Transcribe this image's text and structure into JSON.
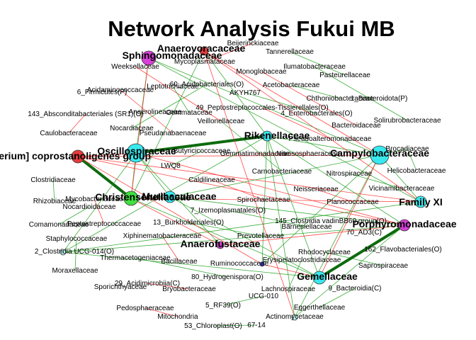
{
  "title": "Network Analysis Fukui MB",
  "colors": {
    "negative_edge": "#ff2a2a",
    "positive_edge": "#1a9e1a",
    "strong_edge": "#0e6b0e",
    "cyan": "#39e8ee",
    "magenta": "#d640d6",
    "green": "#3fe03f",
    "red": "#e43c3c",
    "blue": "#4040e8",
    "light_cyan": "#bff7f7"
  },
  "nodes": [
    {
      "id": "title_sph",
      "label": "Sphingomonadaceae",
      "color": "magenta",
      "size": 10,
      "big": true
    },
    {
      "id": "anaerovoracaceae",
      "label": "Anaerovoracaceae",
      "color": "red",
      "size": 6,
      "big": true
    },
    {
      "id": "beijerinckiaceae",
      "label": "Beijerinckiaceae"
    },
    {
      "id": "tannerellaceae",
      "label": "Tannerellaceae"
    },
    {
      "id": "weeksellaceae",
      "label": "Weeksellaceae"
    },
    {
      "id": "mycoplasmataceae",
      "label": "Mycoplasmataceae"
    },
    {
      "id": "monoglobaceae",
      "label": "Monoglobaceae"
    },
    {
      "id": "ilumatobacteraceae",
      "label": "Ilumatobacteraceae"
    },
    {
      "id": "pasteurellaceae",
      "label": "Pasteurellaceae"
    },
    {
      "id": "acidaminococcaceae",
      "label": "Acidaminococcaceae"
    },
    {
      "id": "leptotrichiaceae",
      "label": "Leptotrichiaceae"
    },
    {
      "id": "acidobacteriales",
      "label": "60_Acidobacteriales(O)"
    },
    {
      "id": "acetobacteraceae",
      "label": "Acetobacteraceae"
    },
    {
      "id": "firmicutes",
      "label": "6_Firmicutes(P)"
    },
    {
      "id": "akyh767",
      "label": "AKYH767"
    },
    {
      "id": "chthoniobacteraceae",
      "label": "Chthoniobacteraceae"
    },
    {
      "id": "bacteroidota",
      "label": "1_Bacteroidota(P)"
    },
    {
      "id": "absconditabacteriales",
      "label": "143_Absconditabacteriales (SR1)(O)"
    },
    {
      "id": "anaerolineaceae",
      "label": "Anaerolineaceae"
    },
    {
      "id": "gemmataceae",
      "label": "Gemmataceae"
    },
    {
      "id": "peptostreptococcales",
      "label": "49_Peptostreptococcales-Tissierellales(O)"
    },
    {
      "id": "enterobacterales",
      "label": "4_Enterobacterales(O)"
    },
    {
      "id": "nocardiaceae",
      "label": "Nocardiaceae"
    },
    {
      "id": "veillonellaceae",
      "label": "Veillonellaceae"
    },
    {
      "id": "bacteroidaceae",
      "label": "Bacteroidaceae"
    },
    {
      "id": "caulobacteraceae",
      "label": "Caulobacteraceae"
    },
    {
      "id": "pseudanabaenaceae",
      "label": "Pseudanabaenaceae"
    },
    {
      "id": "rikenellaceae",
      "label": "Rikenellaceae",
      "color": "cyan",
      "size": 7,
      "big": true
    },
    {
      "id": "solirubrobacteraceae",
      "label": "Solirubrobacteraceae"
    },
    {
      "id": "pseudoalteromonadaceae",
      "label": "Pseudoalteromonadaceae"
    },
    {
      "id": "coprostanoligenes",
      "label": "[Eubacterium] coprostanoligenes group",
      "color": "red",
      "size": 9,
      "big": true
    },
    {
      "id": "oscillospiraceae",
      "label": "Oscillospiraceae",
      "color": "cyan",
      "size": 13,
      "big": true
    },
    {
      "id": "butyricicoccaceae",
      "label": "Butyricicoccaceae"
    },
    {
      "id": "gemmatimonadaceae",
      "label": "Gemmatimonadaceae"
    },
    {
      "id": "nitrososphaeraceae",
      "label": "Nitrososphaeraceae"
    },
    {
      "id": "campylobacteraceae",
      "label": "Campylobacteraceae",
      "color": "cyan",
      "size": 13,
      "big": true
    },
    {
      "id": "brocadiaceae",
      "label": "Brocadiaceae"
    },
    {
      "id": "lwq8",
      "label": "LWQ8"
    },
    {
      "id": "helicobacteraceae",
      "label": "Helicobacteraceae"
    },
    {
      "id": "carnobacteriaceae",
      "label": "Carnobacteriaceae"
    },
    {
      "id": "nitrospiraceae",
      "label": "Nitrospiraceae"
    },
    {
      "id": "clostridiaceae",
      "label": "Clostridiaceae"
    },
    {
      "id": "caldilineaceae",
      "label": "Caldilineaceae"
    },
    {
      "id": "neisseriaceae",
      "label": "Neisseriaceae"
    },
    {
      "id": "vicinamibacteraceae",
      "label": "Vicinamibacteraceae"
    },
    {
      "id": "christensenellaceae",
      "label": "Christensenellaceae",
      "color": "green",
      "size": 10,
      "big": true
    },
    {
      "id": "muribaculaceae",
      "label": "Muribaculaceae",
      "color": "cyan",
      "size": 8,
      "big": true
    },
    {
      "id": "rhizobiaceae",
      "label": "Rhizobiaceae"
    },
    {
      "id": "mycobacteriaceae",
      "label": "Mycobacteriaceae"
    },
    {
      "id": "spirochaetaceae",
      "label": "Spirochaetaceae"
    },
    {
      "id": "planococcaceae",
      "label": "Planococcaceae"
    },
    {
      "id": "family_xi",
      "label": "Family XI",
      "color": "cyan",
      "size": 8,
      "big": true
    },
    {
      "id": "nocardioidaceae",
      "label": "Nocardioidaceae"
    },
    {
      "id": "izemoplasmatales",
      "label": "7_Izemoplasmatales(O)"
    },
    {
      "id": "porphyromonadaceae",
      "label": "Porphyromonadaceae",
      "color": "magenta",
      "size": 8,
      "big": true
    },
    {
      "id": "comamonadaceae",
      "label": "Comamonadaceae"
    },
    {
      "id": "peptostreptococcaceae",
      "label": "Peptostreptococcaceae"
    },
    {
      "id": "burkholderiales",
      "label": "13_Burkholderiales(O)"
    },
    {
      "id": "clostridia_vadin",
      "label": "145_Clostridia vadinBB60 group(O)"
    },
    {
      "id": "barnesiellaceae",
      "label": "Barnesiellaceae"
    },
    {
      "id": "ad3",
      "label": "70_AD3(C)"
    },
    {
      "id": "staphylococcaceae",
      "label": "Staphylococcaceae"
    },
    {
      "id": "xiphinematobacteraceae",
      "label": "Xiphinematobacteraceae"
    },
    {
      "id": "prevotellaceae",
      "label": "Prevotellaceae"
    },
    {
      "id": "anaerofustaceae",
      "label": "Anaerofustaceae",
      "color": "magenta",
      "size": 5,
      "big": true
    },
    {
      "id": "clostridia_ucg014",
      "label": "2_Clostridia UCG-014(O)",
      "color": "light_cyan",
      "size": 4
    },
    {
      "id": "thermacetogeniaceae",
      "label": "Thermacetogeniaceae"
    },
    {
      "id": "flavobacteriales",
      "label": "162_Flavobacteriales(O)"
    },
    {
      "id": "rhodocyclaceae",
      "label": "Rhodocyclaceae"
    },
    {
      "id": "bacillaceae",
      "label": "Bacillaceae"
    },
    {
      "id": "ruminococcaceae",
      "label": "Ruminococcaceae",
      "color": "blue",
      "size": 3
    },
    {
      "id": "erysipelatoclostridiaceae",
      "label": "Erysipelatoclostridiaceae"
    },
    {
      "id": "saprospiraceae",
      "label": "Saprospiraceae"
    },
    {
      "id": "moraxellaceae",
      "label": "Moraxellaceae"
    },
    {
      "id": "gemellaceae",
      "label": "Gemellaceae",
      "color": "cyan",
      "size": 9,
      "big": true
    },
    {
      "id": "hydrogenispora",
      "label": "80_Hydrogenispora(O)"
    },
    {
      "id": "acidimicrobiia",
      "label": "29_Acidimicrobiia(C)"
    },
    {
      "id": "sporichthyaceae",
      "label": "Sporichthyaceae"
    },
    {
      "id": "bryobacteraceae",
      "label": "Bryobacteraceae"
    },
    {
      "id": "lachnospiraceae",
      "label": "Lachnospiraceae"
    },
    {
      "id": "bacteroidia",
      "label": "9_Bacteroidia(C)"
    },
    {
      "id": "ucg010",
      "label": "UCG-010"
    },
    {
      "id": "rf39",
      "label": "5_RF39(O)"
    },
    {
      "id": "pedosphaeraceae",
      "label": "Pedosphaeraceae"
    },
    {
      "id": "eggerthellaceae",
      "label": "Eggerthellaceae"
    },
    {
      "id": "mitochondria",
      "label": "Mitochondria"
    },
    {
      "id": "actinomycetaceae",
      "label": "Actinomycetaceae",
      "color": "light_cyan",
      "size": 4
    },
    {
      "id": "chloroplast",
      "label": "53_Chloroplast(O)"
    },
    {
      "id": "n6714",
      "label": "67-14"
    }
  ],
  "edges": [
    {
      "from": "oscillospiraceae",
      "to": "rikenellaceae",
      "sign": "strong"
    },
    {
      "from": "coprostanoligenes",
      "to": "christensenellaceae",
      "sign": "strong"
    },
    {
      "from": "gemellaceae",
      "to": "porphyromonadaceae",
      "sign": "strong"
    },
    {
      "from": "rikenellaceae",
      "to": "campylobacteraceae",
      "sign": "positive"
    },
    {
      "from": "oscillospiraceae",
      "to": "christensenellaceae",
      "sign": "positive"
    },
    {
      "from": "oscillospiraceae",
      "to": "muribaculaceae",
      "sign": "positive"
    },
    {
      "from": "christensenellaceae",
      "to": "muribaculaceae",
      "sign": "positive"
    },
    {
      "from": "campylobacteraceae",
      "to": "family_xi",
      "sign": "positive"
    },
    {
      "from": "campylobacteraceae",
      "to": "brocadiaceae",
      "sign": "positive"
    },
    {
      "from": "coprostanoligenes",
      "to": "oscillospiraceae",
      "sign": "negative"
    },
    {
      "from": "anaerovoracaceae",
      "to": "rikenellaceae",
      "sign": "positive"
    },
    {
      "from": "title_sph",
      "to": "oscillospiraceae",
      "sign": "positive"
    },
    {
      "from": "title_sph",
      "to": "campylobacteraceae",
      "sign": "positive"
    },
    {
      "from": "anaerovoracaceae",
      "to": "campylobacteraceae",
      "sign": "negative"
    },
    {
      "from": "coprostanoligenes",
      "to": "campylobacteraceae",
      "sign": "negative"
    },
    {
      "from": "muribaculaceae",
      "to": "porphyromonadaceae",
      "sign": "positive"
    },
    {
      "from": "muribaculaceae",
      "to": "gemellaceae",
      "sign": "positive"
    },
    {
      "from": "christensenellaceae",
      "to": "gemellaceae",
      "sign": "positive"
    },
    {
      "from": "oscillospiraceae",
      "to": "anaerofustaceae",
      "sign": "positive"
    },
    {
      "from": "clostridia_ucg014",
      "to": "porphyromonadaceae",
      "sign": "positive"
    },
    {
      "from": "clostridia_ucg014",
      "to": "oscillospiraceae",
      "sign": "positive"
    },
    {
      "from": "clostridia_ucg014",
      "to": "rikenellaceae",
      "sign": "positive"
    },
    {
      "from": "actinomycetaceae",
      "to": "porphyromonadaceae",
      "sign": "positive"
    },
    {
      "from": "actinomycetaceae",
      "to": "rikenellaceae",
      "sign": "positive"
    },
    {
      "from": "ruminococcaceae",
      "to": "campylobacteraceae",
      "sign": "positive"
    },
    {
      "from": "ruminococcaceae",
      "to": "rikenellaceae",
      "sign": "positive"
    },
    {
      "from": "coprostanoligenes",
      "to": "porphyromonadaceae",
      "sign": "negative"
    },
    {
      "from": "coprostanoligenes",
      "to": "family_xi",
      "sign": "negative"
    },
    {
      "from": "anaerovoracaceae",
      "to": "christensenellaceae",
      "sign": "positive"
    },
    {
      "from": "anaerovoracaceae",
      "to": "family_xi",
      "sign": "negative"
    },
    {
      "from": "title_sph",
      "to": "christensenellaceae",
      "sign": "negative"
    },
    {
      "from": "christensenellaceae",
      "to": "family_xi",
      "sign": "negative"
    },
    {
      "from": "oscillospiraceae",
      "to": "porphyromonadaceae",
      "sign": "negative"
    },
    {
      "from": "rikenellaceae",
      "to": "porphyromonadaceae",
      "sign": "positive"
    },
    {
      "from": "rikenellaceae",
      "to": "gemellaceae",
      "sign": "positive"
    },
    {
      "from": "muribaculaceae",
      "to": "campylobacteraceae",
      "sign": "positive"
    },
    {
      "from": "clostridia_ucg014",
      "to": "gemellaceae",
      "sign": "positive"
    },
    {
      "from": "clostridia_ucg014",
      "to": "family_xi",
      "sign": "positive"
    },
    {
      "from": "christensenellaceae",
      "to": "anaerofustaceae",
      "sign": "negative"
    },
    {
      "from": "anaerofustaceae",
      "to": "porphyromonadaceae",
      "sign": "negative"
    },
    {
      "from": "ruminococcaceae",
      "to": "gemellaceae",
      "sign": "negative"
    },
    {
      "from": "ruminococcaceae",
      "to": "coprostanoligenes",
      "sign": "negative"
    },
    {
      "from": "actinomycetaceae",
      "to": "campylobacteraceae",
      "sign": "positive"
    },
    {
      "from": "actinomycetaceae",
      "to": "anaerovoracaceae",
      "sign": "negative"
    },
    {
      "from": "title_sph",
      "to": "family_xi",
      "sign": "positive"
    },
    {
      "from": "gemellaceae",
      "to": "campylobacteraceae",
      "sign": "negative"
    }
  ]
}
